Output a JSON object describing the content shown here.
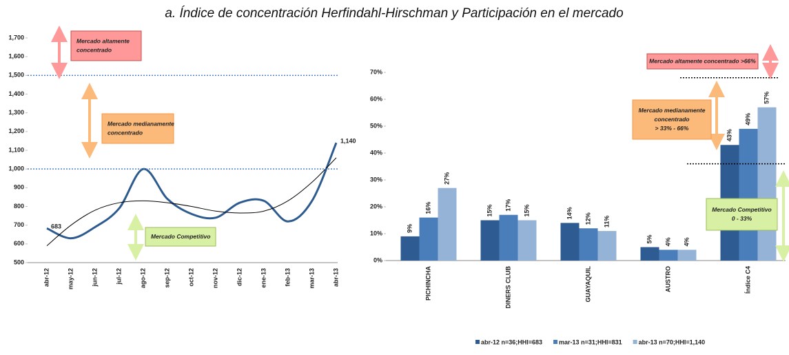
{
  "title": "a.     Índice de concentración Herfindahl-Hirschman y  Participación en el mercado",
  "chart_data": [
    {
      "type": "line",
      "categories": [
        "abr-12",
        "may-12",
        "jun-12",
        "jul-12",
        "ago-12",
        "sep-12",
        "oct-12",
        "nov-12",
        "dic-12",
        "ene-13",
        "feb-13",
        "mar-13",
        "abr-13"
      ],
      "series": [
        {
          "color": "#2e5b8f",
          "values": [
            683,
            630,
            690,
            790,
            1000,
            840,
            760,
            740,
            820,
            830,
            720,
            831,
            1140
          ],
          "value_labels": [
            "683",
            null,
            null,
            null,
            null,
            null,
            null,
            null,
            null,
            null,
            null,
            null,
            "1,140"
          ]
        },
        {
          "color": "#000000",
          "values": [
            590,
            700,
            780,
            820,
            830,
            820,
            800,
            775,
            765,
            775,
            830,
            930,
            1060
          ]
        }
      ],
      "ylim": [
        500,
        1700
      ],
      "yticks": [
        500,
        600,
        700,
        800,
        900,
        {
          "value": 1000,
          "label": "1,000"
        },
        {
          "value": 1100,
          "label": "1,100"
        },
        {
          "value": 1200,
          "label": "1,200"
        },
        {
          "value": 1300,
          "label": "1,300"
        },
        {
          "value": 1400,
          "label": "1,400"
        },
        {
          "value": 1500,
          "label": "1,500"
        },
        {
          "value": 1600,
          "label": "1,600"
        },
        {
          "value": 1700,
          "label": "1,700"
        }
      ],
      "reference_lines": [
        {
          "value": 1000,
          "color": "#4f81bd"
        },
        {
          "value": 1500,
          "color": "#4f81bd"
        }
      ],
      "annotations": [
        {
          "lines": [
            "Mercado altamente",
            "concentrado"
          ],
          "color": "#ff9999"
        },
        {
          "lines": [
            "Mercado medianamente",
            "concentrado"
          ],
          "color": "#fbb97a"
        },
        {
          "lines": [
            "Mercado Competitivo"
          ],
          "color": "#d8f0a4"
        }
      ]
    },
    {
      "type": "bar",
      "categories": [
        "PICHINCHA",
        "DINERS CLUB",
        "GUAYAQUIL",
        "AUSTRO",
        "Índice C4"
      ],
      "series": [
        {
          "name": "abr-12 n=36;HHI=683",
          "color": "#2f5b93",
          "values": [
            9,
            15,
            14,
            5,
            43
          ],
          "value_labels": [
            "9%",
            "15%",
            "14%",
            "5%",
            "43%"
          ]
        },
        {
          "name": "mar-13 n=31;HHI=831",
          "color": "#4a7ebb",
          "values": [
            16,
            17,
            12,
            4,
            49
          ],
          "value_labels": [
            "16%",
            "17%",
            "12%",
            "4%",
            "49%"
          ]
        },
        {
          "name": "abr-13 n=70;HHI=1,140",
          "color": "#95b3d7",
          "values": [
            27,
            15,
            11,
            4,
            57
          ],
          "value_labels": [
            "27%",
            "15%",
            "11%",
            "4%",
            "57%"
          ]
        }
      ],
      "ylim": [
        0,
        70
      ],
      "yticks": [
        {
          "value": 0,
          "label": "0%"
        },
        {
          "value": 10,
          "label": "10%"
        },
        {
          "value": 20,
          "label": "20%"
        },
        {
          "value": 30,
          "label": "30%"
        },
        {
          "value": 40,
          "label": "40%"
        },
        {
          "value": 50,
          "label": "50%"
        },
        {
          "value": 60,
          "label": "60%"
        },
        {
          "value": 70,
          "label": "70%"
        }
      ],
      "reference_lines": [
        {
          "value": 68,
          "color": "#000000"
        },
        {
          "value": 36,
          "color": "#000000"
        }
      ],
      "annotations": [
        {
          "lines": [
            "Mercado altamente  concentrado  >66%"
          ],
          "color": "#ff9999"
        },
        {
          "lines": [
            "Mercado medianamente",
            "concentrado",
            "> 33% - 66%"
          ],
          "color": "#fbb97a"
        },
        {
          "lines": [
            "Mercado Competitivo",
            "0 - 33%"
          ],
          "color": "#d8f0a4"
        }
      ],
      "legend": "bottom"
    }
  ]
}
